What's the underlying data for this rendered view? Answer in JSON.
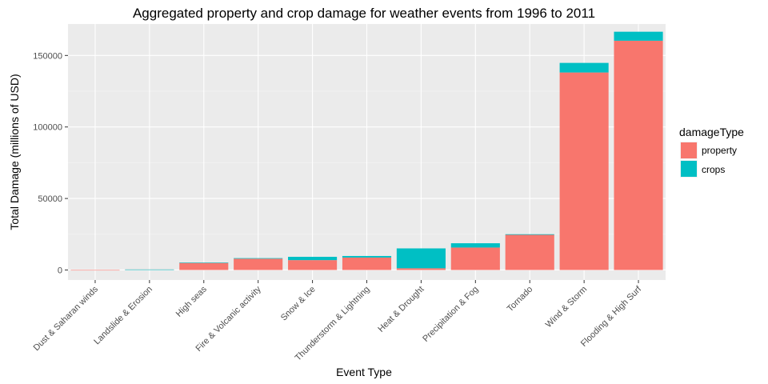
{
  "chart_data": {
    "type": "bar",
    "stacked": true,
    "title": "Aggregated property and crop damage for weather events from 1996 to 2011",
    "xlabel": "Event Type",
    "ylabel": "Total Damage (millions of USD)",
    "ylim": [
      -7000,
      172000
    ],
    "yticks": [
      0,
      50000,
      100000,
      150000
    ],
    "ytick_labels": [
      "0",
      "50000",
      "100000",
      "150000"
    ],
    "grid": true,
    "legend_position": "right",
    "legend_title": "damageType",
    "categories": [
      "Dust & Saharan winds",
      "Landslide & Erosion",
      "High seas",
      "Fire & Volcanic activity",
      "Snow & Ice",
      "Thunderstorm & Lightning",
      "Heat & Drought",
      "Precipitation & Fog",
      "Tornado",
      "Wind & Storm",
      "Flooding & High Surf"
    ],
    "series": [
      {
        "name": "property",
        "color": "#f8766d",
        "values": [
          5,
          330,
          5100,
          7900,
          6900,
          8700,
          1200,
          15700,
          24600,
          138100,
          160300
        ]
      },
      {
        "name": "crops",
        "color": "#00bfc4",
        "values": [
          0,
          20,
          50,
          400,
          2300,
          1100,
          13900,
          3000,
          420,
          6700,
          6300
        ]
      }
    ]
  }
}
